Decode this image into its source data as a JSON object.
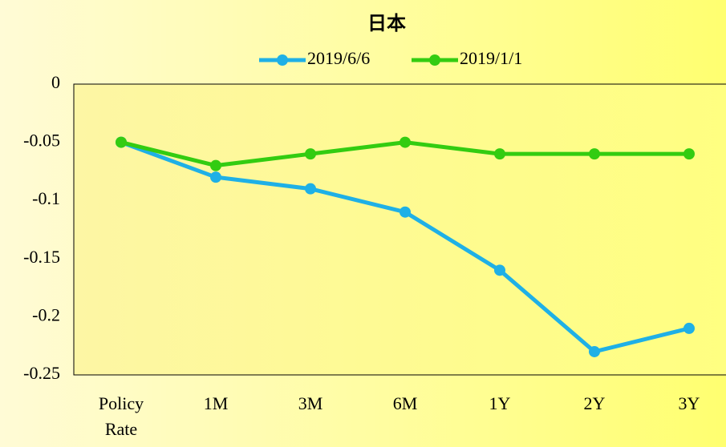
{
  "chart_data": {
    "type": "line",
    "title": "日本",
    "categories": [
      "Policy Rate",
      "1M",
      "3M",
      "6M",
      "1Y",
      "2Y",
      "3Y"
    ],
    "series": [
      {
        "name": "2019/6/6",
        "color": "#1fb0e6",
        "values": [
          -0.05,
          -0.08,
          -0.09,
          -0.11,
          -0.16,
          -0.23,
          -0.21
        ]
      },
      {
        "name": "2019/1/1",
        "color": "#33cc11",
        "values": [
          -0.05,
          -0.07,
          -0.06,
          -0.05,
          -0.06,
          -0.06,
          -0.06
        ]
      }
    ],
    "ylim": [
      -0.25,
      0
    ],
    "yticks": [
      0,
      -0.05,
      -0.1,
      -0.15,
      -0.2,
      -0.25
    ],
    "grid": false,
    "legend": "top"
  }
}
